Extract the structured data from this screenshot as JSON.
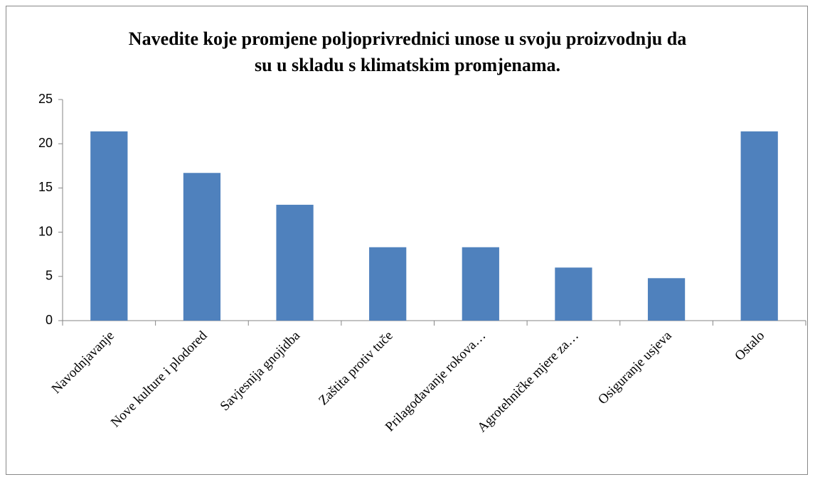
{
  "chart_data": {
    "type": "bar",
    "title": "Navedite koje promjene poljoprivrednici unose u svoju proizvodnju da su u skladu s klimatskim promjenama.",
    "categories": [
      "Navodnjavanje",
      "Nove kulture i plodored",
      "Savjesnija gnojidba",
      "Zaštita protiv tuče",
      "Prilagođavanje rokova…",
      "Agrotehničke mjere za…",
      "Osiguranje usjeva",
      "Ostalo"
    ],
    "values": [
      21.4,
      16.7,
      13.1,
      8.3,
      8.3,
      6,
      4.8,
      21.4
    ],
    "color": "#4f81bd",
    "ylim": [
      0,
      25
    ],
    "yticks": [
      0,
      5,
      10,
      15,
      20,
      25
    ],
    "grid": false
  }
}
